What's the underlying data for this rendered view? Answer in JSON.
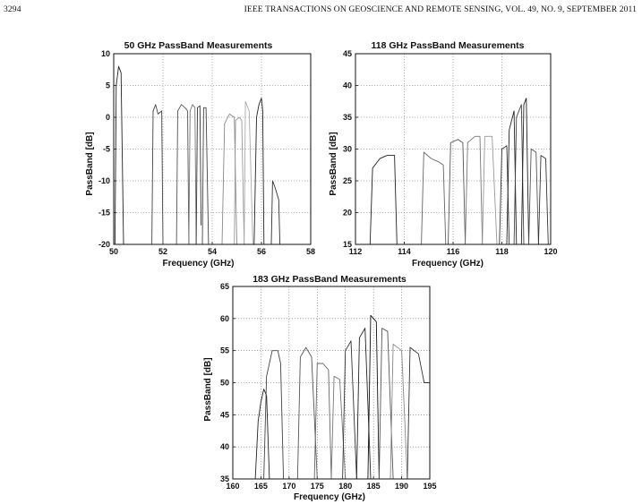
{
  "header": {
    "page_number": "3294",
    "journal": "IEEE TRANSACTIONS ON GEOSCIENCE AND REMOTE SENSING, VOL. 49, NO. 9, SEPTEMBER 2011"
  },
  "chart_data": [
    {
      "type": "line",
      "title": "50 GHz PassBand Measurements",
      "xlabel": "Frequency (GHz)",
      "ylabel": "PassBand [dB]",
      "xlim": [
        50,
        58
      ],
      "ylim": [
        -20,
        10
      ],
      "xticks": [
        50,
        52,
        54,
        56,
        58
      ],
      "yticks": [
        10,
        5,
        0,
        -5,
        -10,
        -15,
        -20
      ],
      "grid": true,
      "series": [
        {
          "color": "#222222",
          "x": [
            50.05,
            50.1,
            50.2,
            50.3,
            50.4
          ],
          "y": [
            -20,
            5,
            8,
            7,
            -20
          ]
        },
        {
          "color": "#444444",
          "x": [
            51.55,
            51.6,
            51.7,
            51.8,
            51.95,
            52.0
          ],
          "y": [
            -20,
            1,
            2,
            0.5,
            1,
            -20
          ]
        },
        {
          "color": "#555555",
          "x": [
            52.55,
            52.6,
            52.75,
            52.9,
            53.0,
            53.05
          ],
          "y": [
            -20,
            1,
            2,
            1.5,
            1,
            -20
          ]
        },
        {
          "color": "#777777",
          "x": [
            53.05,
            53.1,
            53.2,
            53.3,
            53.35
          ],
          "y": [
            -20,
            1,
            2,
            1.5,
            -20
          ]
        },
        {
          "color": "#333333",
          "x": [
            53.35,
            53.4,
            53.5,
            53.55
          ],
          "y": [
            -20,
            1.5,
            1.8,
            -17
          ]
        },
        {
          "color": "#444444",
          "x": [
            53.6,
            53.65,
            53.75,
            53.85
          ],
          "y": [
            -20,
            1.5,
            1.5,
            -20
          ]
        },
        {
          "color": "#888888",
          "x": [
            54.4,
            54.5,
            54.7,
            54.9,
            55.0
          ],
          "y": [
            -20,
            -1,
            0.5,
            0,
            -20
          ]
        },
        {
          "color": "#999999",
          "x": [
            54.9,
            54.95,
            55.1,
            55.2,
            55.3
          ],
          "y": [
            -20,
            -0.5,
            0,
            -0.5,
            -20
          ]
        },
        {
          "color": "#aaaaaa",
          "x": [
            55.3,
            55.35,
            55.5,
            55.65
          ],
          "y": [
            -20,
            2.5,
            1,
            -20
          ]
        },
        {
          "color": "#222222",
          "x": [
            55.7,
            55.8,
            55.9,
            56.0,
            56.05,
            56.1
          ],
          "y": [
            -20,
            0,
            2,
            3,
            1,
            -20
          ]
        },
        {
          "color": "#333333",
          "x": [
            56.4,
            56.45,
            56.55,
            56.7,
            56.75
          ],
          "y": [
            -20,
            -10,
            -11,
            -13,
            -20
          ]
        }
      ]
    },
    {
      "type": "line",
      "title": "118 GHz PassBand Measurements",
      "xlabel": "Frequency (GHz)",
      "ylabel": "PassBand [dB]",
      "xlim": [
        112,
        120
      ],
      "ylim": [
        15,
        45
      ],
      "xticks": [
        112,
        114,
        116,
        118,
        120
      ],
      "yticks": [
        45,
        40,
        35,
        30,
        25,
        20,
        15
      ],
      "grid": true,
      "series": [
        {
          "color": "#222222",
          "x": [
            112.6,
            112.7,
            113.0,
            113.3,
            113.6,
            113.7
          ],
          "y": [
            15,
            27,
            28.5,
            29,
            29,
            15
          ]
        },
        {
          "color": "#666666",
          "x": [
            114.7,
            114.8,
            115.1,
            115.4,
            115.6,
            115.7
          ],
          "y": [
            15,
            29.5,
            28.5,
            28,
            27.5,
            15
          ]
        },
        {
          "color": "#555555",
          "x": [
            115.8,
            115.9,
            116.2,
            116.4,
            116.5
          ],
          "y": [
            15,
            31,
            31.5,
            31,
            15
          ]
        },
        {
          "color": "#777777",
          "x": [
            116.5,
            116.6,
            116.9,
            117.1,
            117.2
          ],
          "y": [
            15,
            31,
            32,
            32,
            15
          ]
        },
        {
          "color": "#999999",
          "x": [
            117.2,
            117.3,
            117.6,
            117.8
          ],
          "y": [
            15,
            32,
            32,
            15
          ]
        },
        {
          "color": "#333333",
          "x": [
            117.9,
            118.0,
            118.2,
            118.3
          ],
          "y": [
            15,
            30,
            30.5,
            15
          ]
        },
        {
          "color": "#222222",
          "x": [
            118.2,
            118.3,
            118.5,
            118.6
          ],
          "y": [
            15,
            33,
            36,
            15
          ]
        },
        {
          "color": "#444444",
          "x": [
            118.5,
            118.6,
            118.8,
            118.9
          ],
          "y": [
            15,
            35,
            37,
            15
          ]
        },
        {
          "color": "#222222",
          "x": [
            118.8,
            118.9,
            119.0,
            119.1
          ],
          "y": [
            15,
            37,
            38,
            15
          ]
        },
        {
          "color": "#555555",
          "x": [
            119.1,
            119.2,
            119.4,
            119.5
          ],
          "y": [
            15,
            30,
            29.5,
            15
          ]
        },
        {
          "color": "#333333",
          "x": [
            119.5,
            119.6,
            119.8,
            119.9
          ],
          "y": [
            15,
            29,
            28.5,
            15
          ]
        }
      ]
    },
    {
      "type": "line",
      "title": "183 GHz PassBand Measurements",
      "xlabel": "Frequency (GHz)",
      "ylabel": "PassBand [dB]",
      "xlim": [
        160,
        195
      ],
      "ylim": [
        35,
        65
      ],
      "xticks": [
        160,
        165,
        170,
        175,
        180,
        185,
        190,
        195
      ],
      "yticks": [
        65,
        60,
        55,
        50,
        45,
        40,
        35
      ],
      "grid": true,
      "series": [
        {
          "color": "#222222",
          "x": [
            164.0,
            164.5,
            165.0,
            165.5,
            166.0,
            166.5
          ],
          "y": [
            35,
            44,
            47,
            49,
            48,
            35
          ]
        },
        {
          "color": "#444444",
          "x": [
            165.5,
            166.0,
            167.0,
            168.0,
            168.5,
            169.0
          ],
          "y": [
            35,
            51,
            55,
            55,
            53,
            35
          ]
        },
        {
          "color": "#555555",
          "x": [
            171.5,
            172.0,
            173.0,
            174.0,
            175.0
          ],
          "y": [
            35,
            54,
            55.5,
            54,
            35
          ]
        },
        {
          "color": "#666666",
          "x": [
            174.5,
            175.0,
            176.0,
            177.0,
            177.5
          ],
          "y": [
            35,
            53,
            53,
            52,
            35
          ]
        },
        {
          "color": "#777777",
          "x": [
            177.5,
            178.0,
            179.0,
            180.0
          ],
          "y": [
            35,
            51,
            50.5,
            35
          ]
        },
        {
          "color": "#333333",
          "x": [
            179.5,
            180.0,
            181.0,
            182.0
          ],
          "y": [
            35,
            55,
            56.5,
            35
          ]
        },
        {
          "color": "#222222",
          "x": [
            182.0,
            182.5,
            183.5,
            184.5
          ],
          "y": [
            35,
            57,
            58.5,
            35
          ]
        },
        {
          "color": "#111111",
          "x": [
            184.0,
            184.5,
            185.5,
            186.0
          ],
          "y": [
            35,
            60.5,
            59.5,
            35
          ]
        },
        {
          "color": "#555555",
          "x": [
            186.0,
            186.5,
            187.5,
            188.5
          ],
          "y": [
            35,
            58.5,
            58,
            35
          ]
        },
        {
          "color": "#888888",
          "x": [
            188.0,
            188.5,
            190.0,
            191.0
          ],
          "y": [
            35,
            56,
            55,
            35
          ]
        },
        {
          "color": "#333333",
          "x": [
            191.0,
            191.5,
            193.0,
            194.0,
            195.0
          ],
          "y": [
            35,
            55.5,
            54.5,
            50,
            50
          ]
        }
      ]
    }
  ]
}
